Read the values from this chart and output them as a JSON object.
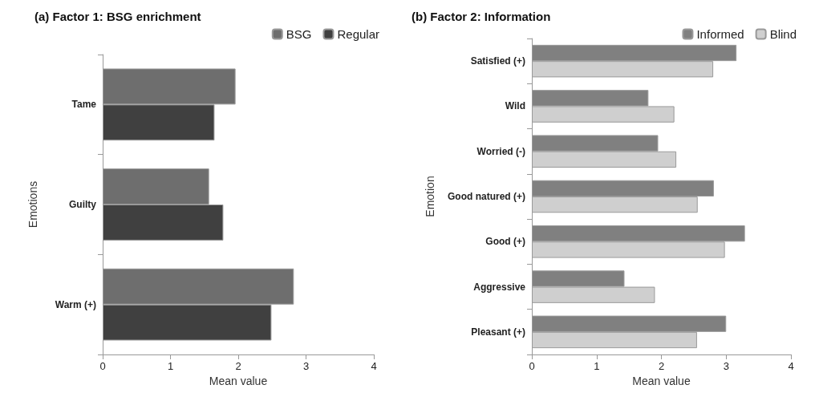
{
  "chart_data": [
    {
      "type": "bar",
      "orientation": "horizontal",
      "title": "(a) Factor 1: BSG enrichment",
      "xlabel": "Mean value",
      "ylabel": "Emotions",
      "categories": [
        "Tame",
        "Guilty",
        "Warm (+)"
      ],
      "xlim": [
        0,
        4
      ],
      "xticks": [
        0,
        1,
        2,
        3,
        4
      ],
      "grid": false,
      "legend": "top right",
      "series": [
        {
          "name": "BSG",
          "color": "#6e6e6e",
          "values": [
            1.96,
            1.57,
            2.82
          ]
        },
        {
          "name": "Regular",
          "color": "#404040",
          "values": [
            1.65,
            1.78,
            2.49
          ]
        }
      ]
    },
    {
      "type": "bar",
      "orientation": "horizontal",
      "title": "(b) Factor 2: Information",
      "xlabel": "Mean value",
      "ylabel": "Emotion",
      "categories": [
        "Satisfied (+)",
        "Wild",
        "Worried (-)",
        "Good natured (+)",
        "Good (+)",
        "Aggressive",
        "Pleasant (+)"
      ],
      "xlim": [
        0,
        4
      ],
      "xticks": [
        0,
        1,
        2,
        3,
        4
      ],
      "grid": false,
      "legend": "top right",
      "series": [
        {
          "name": "Informed",
          "color": "#808080",
          "values": [
            3.16,
            1.8,
            1.95,
            2.81,
            3.29,
            1.43,
            3.0
          ]
        },
        {
          "name": "Blind",
          "color": "#cfcfcf",
          "values": [
            2.8,
            2.2,
            2.23,
            2.56,
            2.98,
            1.9,
            2.55
          ]
        }
      ]
    }
  ]
}
